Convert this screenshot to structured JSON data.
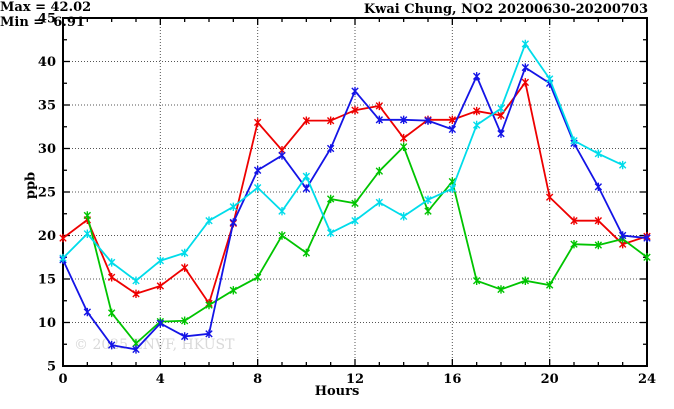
{
  "header": {
    "title": "Kwai Chung, NO2 20200630-20200703"
  },
  "legend": {
    "max_label": "Max = 42.02",
    "min_label": "Min =  6.91"
  },
  "axes": {
    "x": {
      "label": "Hours",
      "ticks": [
        "0",
        "4",
        "8",
        "12",
        "16",
        "20",
        "24"
      ]
    },
    "y": {
      "label": "ppb",
      "ticks": [
        "5",
        "10",
        "15",
        "20",
        "25",
        "30",
        "35",
        "40",
        "45"
      ]
    }
  },
  "watermark": {
    "text": "© 2025 ENVF, HKUST"
  },
  "colors": {
    "series1": "#ee0000",
    "series2": "#00c400",
    "series3": "#1414e6",
    "series4": "#00dcea"
  },
  "chart_data": {
    "type": "line",
    "title": "Kwai Chung, NO2 20200630-20200703",
    "xlabel": "Hours",
    "ylabel": "ppb",
    "xlim": [
      0,
      24
    ],
    "ylim": [
      5,
      45
    ],
    "x_major_ticks": [
      0,
      4,
      8,
      12,
      16,
      20,
      24
    ],
    "x_minor_step": 1,
    "y_major_ticks": [
      5,
      10,
      15,
      20,
      25,
      30,
      35,
      40,
      45
    ],
    "y_minor_step": 2.5,
    "grid": true,
    "legend_position": "top-right-inside",
    "annotations": {
      "max": 42.02,
      "min": 6.91
    },
    "series": [
      {
        "name": "series-1-red",
        "color": "#ee0000",
        "x": [
          0,
          1,
          2,
          3,
          4,
          5,
          6,
          7,
          8,
          9,
          10,
          11,
          12,
          13,
          14,
          15,
          16,
          17,
          18,
          19,
          20,
          21,
          22,
          23,
          24
        ],
        "values": [
          19.7,
          21.8,
          15.2,
          13.3,
          14.2,
          16.3,
          12.2,
          21.4,
          33.0,
          29.8,
          33.2,
          33.2,
          34.4,
          34.9,
          31.2,
          33.3,
          33.3,
          34.3,
          33.8,
          37.6,
          24.4,
          21.7,
          21.7,
          19.0,
          19.9
        ]
      },
      {
        "name": "series-2-green",
        "color": "#00c400",
        "x": [
          1,
          2,
          3,
          4,
          5,
          6,
          7,
          8,
          9,
          10,
          11,
          12,
          13,
          14,
          15,
          16,
          17,
          18,
          19,
          20,
          21,
          22,
          23,
          24
        ],
        "values": [
          22.3,
          11.1,
          7.6,
          10.1,
          10.2,
          12.0,
          13.7,
          15.2,
          20.0,
          18.0,
          24.2,
          23.7,
          27.4,
          30.2,
          22.8,
          26.2,
          14.8,
          13.8,
          14.8,
          14.3,
          19.0,
          18.9,
          19.6,
          17.5
        ]
      },
      {
        "name": "series-3-blue",
        "color": "#1414e6",
        "x": [
          0,
          1,
          2,
          3,
          4,
          5,
          6,
          7,
          8,
          9,
          10,
          11,
          12,
          13,
          14,
          15,
          16,
          17,
          18,
          19,
          20,
          21,
          22,
          23,
          24
        ],
        "values": [
          17.2,
          11.2,
          7.4,
          6.91,
          9.9,
          8.4,
          8.7,
          21.5,
          27.5,
          29.2,
          25.4,
          30.0,
          36.6,
          33.3,
          33.3,
          33.2,
          32.2,
          38.3,
          31.7,
          39.3,
          37.5,
          30.6,
          25.6,
          20.0,
          19.7
        ]
      },
      {
        "name": "series-4-cyan",
        "color": "#00dcea",
        "x": [
          0,
          1,
          2,
          3,
          4,
          5,
          6,
          7,
          8,
          9,
          10,
          11,
          12,
          13,
          14,
          15,
          16,
          17,
          18,
          19,
          20,
          21,
          22,
          23
        ],
        "values": [
          17.4,
          20.2,
          16.9,
          14.8,
          17.1,
          18.0,
          21.7,
          23.3,
          25.5,
          22.8,
          26.8,
          20.3,
          21.7,
          23.8,
          22.2,
          24.1,
          25.4,
          32.7,
          34.6,
          42.02,
          38.0,
          30.9,
          29.4,
          28.1
        ]
      }
    ]
  }
}
